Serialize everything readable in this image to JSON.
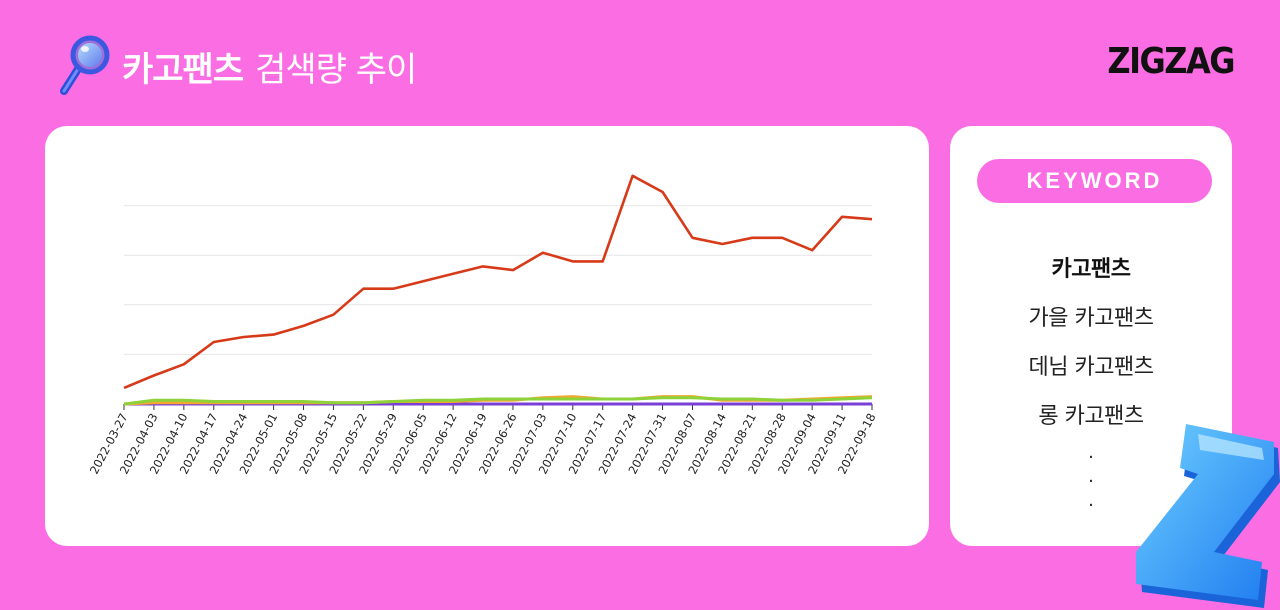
{
  "header": {
    "title_bold": "카고팬츠",
    "title_rest": "검색량 추이",
    "logo": "ZIGZAG"
  },
  "keywords": {
    "label": "KEYWORD",
    "items": [
      "카고팬츠",
      "가을 카고팬츠",
      "데님 카고팬츠",
      "롱 카고팬츠"
    ],
    "more": [
      "·",
      "·",
      "·"
    ]
  },
  "colors": {
    "background": "#fa6de3",
    "main_series": "#d63a18",
    "card": "#ffffff"
  },
  "chart_data": {
    "type": "line",
    "title": "",
    "xlabel": "",
    "ylabel": "",
    "ylim": [
      0,
      100
    ],
    "grid": true,
    "categories": [
      "2022-03-27",
      "2022-04-03",
      "2022-04-10",
      "2022-04-17",
      "2022-04-24",
      "2022-05-01",
      "2022-05-08",
      "2022-05-15",
      "2022-05-22",
      "2022-05-29",
      "2022-06-05",
      "2022-06-12",
      "2022-06-19",
      "2022-06-26",
      "2022-07-03",
      "2022-07-10",
      "2022-07-17",
      "2022-07-24",
      "2022-07-31",
      "2022-08-07",
      "2022-08-14",
      "2022-08-21",
      "2022-08-28",
      "2022-09-04",
      "2022-09-11",
      "2022-09-18"
    ],
    "series": [
      {
        "values": [
          6.5,
          11.5,
          16,
          25,
          27,
          28,
          31.5,
          36,
          46.5,
          46.5,
          49.5,
          52.5,
          55.5,
          54,
          61,
          57.5,
          57.5,
          92,
          85.5,
          67,
          64.5,
          67,
          67,
          62,
          75.5,
          74.5
        ],
        "color": "#d63a18"
      },
      {
        "values": [
          0,
          1.5,
          1.5,
          1,
          1,
          1,
          1,
          0.5,
          0.5,
          1,
          1.5,
          1.5,
          2,
          2,
          2,
          2,
          2,
          2,
          2.5,
          2.5,
          2,
          2,
          1.5,
          1.5,
          2,
          2.5
        ],
        "color": "#8ed23a"
      },
      {
        "values": [
          0,
          0.5,
          0.5,
          0.5,
          0.5,
          0.5,
          0.5,
          0.5,
          0.5,
          1,
          1,
          1,
          1.5,
          1.5,
          2.5,
          3,
          2,
          2,
          3,
          3,
          1.5,
          1.5,
          1.5,
          2,
          2.5,
          3
        ],
        "color": "#f0a830"
      },
      {
        "values": [
          0,
          0,
          0,
          0,
          0,
          0,
          0,
          0,
          0,
          0,
          0,
          0,
          0,
          0,
          0,
          0,
          0,
          0,
          0,
          0,
          0,
          0,
          0,
          0,
          0,
          0
        ],
        "color": "#7a3fd6"
      },
      {
        "values": [
          0,
          0,
          0,
          0,
          0,
          0,
          0,
          0,
          0,
          0,
          0,
          0,
          0,
          0,
          0,
          0,
          0,
          0,
          0,
          0,
          0,
          0,
          0,
          0,
          0,
          0
        ],
        "color": "#c8102e"
      },
      {
        "values": [
          0,
          0,
          0,
          0,
          0,
          0,
          0,
          0,
          0,
          0,
          0,
          0,
          0,
          0,
          0,
          0,
          0,
          0,
          0,
          0,
          0,
          0,
          0,
          0,
          0,
          0
        ],
        "color": "#3fb8c8"
      },
      {
        "values": [
          0,
          0,
          0,
          0,
          0,
          0,
          0,
          0,
          0,
          0,
          0,
          0,
          0,
          0,
          0,
          0,
          0,
          0,
          0,
          0,
          0,
          0,
          0,
          0,
          0,
          0
        ],
        "color": "#7a4a2a"
      }
    ]
  }
}
